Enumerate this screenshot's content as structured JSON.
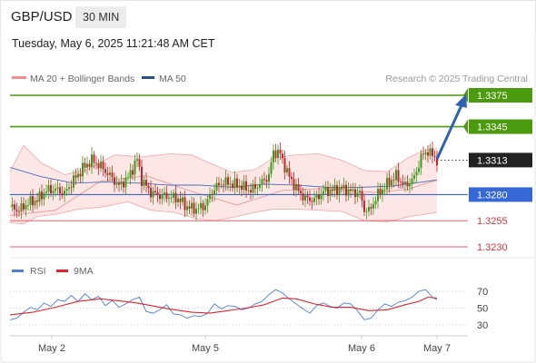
{
  "header": {
    "symbol": "GBP/USD",
    "timeframe": "30 MIN"
  },
  "timestamp": "Tuesday, May 6, 2025 11:21:48 AM CET",
  "legend": {
    "bollinger": "MA 20 + Bollinger Bands",
    "ma50": "MA 50",
    "rsi": "RSI",
    "rsi_ma": "9MA",
    "credit": "Research © 2025 Trading Central"
  },
  "colors": {
    "target": "#4c9a0e",
    "pivot": "#3567d6",
    "support": "#e8616a",
    "band_fill": "#fde6e6",
    "band_line": "#f2a7a7",
    "ma50_line": "#4a6fb5",
    "arrow": "#2f63ad",
    "candle_up": "#3c9a1b",
    "candle_down": "#c0262d",
    "rsi_line": "#4e7fd8",
    "rsi_ma_line": "#d92630"
  },
  "chart_data": [
    {
      "type": "candlestick",
      "symbol": "GBP/USD",
      "timeframe": "30 MIN",
      "ylim": [
        1.3216,
        1.3392
      ],
      "x_ticks": [
        "May 2",
        "May 5",
        "May 6",
        "May 7"
      ],
      "levels": [
        {
          "value": 1.3375,
          "label": "1.3375",
          "kind": "target"
        },
        {
          "value": 1.3345,
          "label": "1.3345",
          "kind": "target"
        },
        {
          "value": 1.3313,
          "label": "1.3313",
          "kind": "last"
        },
        {
          "value": 1.328,
          "label": "1.3280",
          "kind": "pivot"
        },
        {
          "value": 1.3255,
          "label": "1.3255",
          "kind": "support"
        },
        {
          "value": 1.323,
          "label": "1.3230",
          "kind": "support"
        }
      ],
      "arrow": {
        "from": 1.3314,
        "to": 1.3376,
        "direction": "up"
      },
      "close_path": [
        [
          0,
          1.3268
        ],
        [
          4,
          1.3265
        ],
        [
          8,
          1.3272
        ],
        [
          12,
          1.3275
        ],
        [
          16,
          1.3284
        ],
        [
          20,
          1.3285
        ],
        [
          24,
          1.3281
        ],
        [
          28,
          1.3294
        ],
        [
          32,
          1.3305
        ],
        [
          36,
          1.3313
        ],
        [
          40,
          1.3307
        ],
        [
          44,
          1.3298
        ],
        [
          48,
          1.3288
        ],
        [
          52,
          1.3296
        ],
        [
          56,
          1.3314
        ],
        [
          58,
          1.3294
        ],
        [
          62,
          1.3282
        ],
        [
          66,
          1.3279
        ],
        [
          70,
          1.3278
        ],
        [
          74,
          1.3276
        ],
        [
          78,
          1.3268
        ],
        [
          82,
          1.3266
        ],
        [
          86,
          1.327
        ],
        [
          90,
          1.3286
        ],
        [
          94,
          1.3292
        ],
        [
          98,
          1.329
        ],
        [
          102,
          1.3288
        ],
        [
          106,
          1.3284
        ],
        [
          110,
          1.329
        ],
        [
          114,
          1.3298
        ],
        [
          116,
          1.3321
        ],
        [
          119,
          1.3319
        ],
        [
          122,
          1.3301
        ],
        [
          126,
          1.3286
        ],
        [
          130,
          1.3276
        ],
        [
          134,
          1.3275
        ],
        [
          138,
          1.3283
        ],
        [
          142,
          1.3284
        ],
        [
          146,
          1.3286
        ],
        [
          150,
          1.3283
        ],
        [
          154,
          1.3281
        ],
        [
          156,
          1.3266
        ],
        [
          158,
          1.3264
        ],
        [
          162,
          1.328
        ],
        [
          166,
          1.329
        ],
        [
          170,
          1.3298
        ],
        [
          174,
          1.3288
        ],
        [
          178,
          1.3296
        ],
        [
          181,
          1.3316
        ],
        [
          184,
          1.3322
        ],
        [
          188,
          1.3313
        ]
      ],
      "ma20": [
        [
          0,
          1.326
        ],
        [
          20,
          1.3265
        ],
        [
          40,
          1.3293
        ],
        [
          60,
          1.3298
        ],
        [
          80,
          1.3283
        ],
        [
          100,
          1.327
        ],
        [
          120,
          1.3284
        ],
        [
          140,
          1.3286
        ],
        [
          160,
          1.3282
        ],
        [
          175,
          1.3285
        ],
        [
          188,
          1.3294
        ]
      ],
      "bollinger_upper": [
        [
          0,
          1.3302
        ],
        [
          6,
          1.3327
        ],
        [
          14,
          1.331
        ],
        [
          24,
          1.3299
        ],
        [
          34,
          1.3304
        ],
        [
          46,
          1.3318
        ],
        [
          58,
          1.3316
        ],
        [
          70,
          1.3319
        ],
        [
          80,
          1.3318
        ],
        [
          88,
          1.331
        ],
        [
          98,
          1.3301
        ],
        [
          108,
          1.3304
        ],
        [
          116,
          1.3315
        ],
        [
          126,
          1.3318
        ],
        [
          136,
          1.3319
        ],
        [
          146,
          1.3313
        ],
        [
          156,
          1.3303
        ],
        [
          166,
          1.3302
        ],
        [
          176,
          1.3316
        ],
        [
          182,
          1.3322
        ],
        [
          188,
          1.3324
        ]
      ],
      "bollinger_lower": [
        [
          0,
          1.3253
        ],
        [
          6,
          1.3252
        ],
        [
          12,
          1.3259
        ],
        [
          20,
          1.3261
        ],
        [
          30,
          1.3266
        ],
        [
          40,
          1.3268
        ],
        [
          52,
          1.3273
        ],
        [
          62,
          1.3265
        ],
        [
          72,
          1.3263
        ],
        [
          82,
          1.3257
        ],
        [
          90,
          1.3255
        ],
        [
          100,
          1.3259
        ],
        [
          110,
          1.3264
        ],
        [
          116,
          1.3266
        ],
        [
          126,
          1.3266
        ],
        [
          136,
          1.3265
        ],
        [
          146,
          1.3264
        ],
        [
          156,
          1.3255
        ],
        [
          166,
          1.3254
        ],
        [
          176,
          1.3259
        ],
        [
          188,
          1.3263
        ]
      ],
      "ma50": [
        [
          0,
          1.3306
        ],
        [
          14,
          1.3297
        ],
        [
          28,
          1.3291
        ],
        [
          42,
          1.3292
        ],
        [
          56,
          1.3291
        ],
        [
          70,
          1.3289
        ],
        [
          84,
          1.3289
        ],
        [
          98,
          1.3287
        ],
        [
          112,
          1.329
        ],
        [
          126,
          1.3289
        ],
        [
          140,
          1.3287
        ],
        [
          154,
          1.3287
        ],
        [
          168,
          1.3288
        ],
        [
          178,
          1.3291
        ],
        [
          188,
          1.3294
        ]
      ]
    },
    {
      "type": "line",
      "title": "RSI",
      "ylim": [
        20,
        80
      ],
      "y_ticks": [
        30,
        50,
        70
      ],
      "series": [
        {
          "name": "RSI",
          "values": [
            [
              0,
              36
            ],
            [
              3,
              38
            ],
            [
              6,
              45
            ],
            [
              9,
              51
            ],
            [
              12,
              48
            ],
            [
              15,
              56
            ],
            [
              18,
              52
            ],
            [
              21,
              60
            ],
            [
              24,
              58
            ],
            [
              27,
              65
            ],
            [
              30,
              58
            ],
            [
              33,
              67
            ],
            [
              36,
              60
            ],
            [
              39,
              64
            ],
            [
              42,
              53
            ],
            [
              45,
              59
            ],
            [
              48,
              51
            ],
            [
              51,
              55
            ],
            [
              54,
              60
            ],
            [
              57,
              63
            ],
            [
              60,
              46
            ],
            [
              63,
              44
            ],
            [
              66,
              48
            ],
            [
              69,
              54
            ],
            [
              72,
              43
            ],
            [
              75,
              42
            ],
            [
              78,
              38
            ],
            [
              81,
              41
            ],
            [
              84,
              40
            ],
            [
              87,
              44
            ],
            [
              90,
              55
            ],
            [
              93,
              49
            ],
            [
              96,
              53
            ],
            [
              99,
              52
            ],
            [
              102,
              48
            ],
            [
              105,
              50
            ],
            [
              108,
              55
            ],
            [
              111,
              58
            ],
            [
              114,
              66
            ],
            [
              117,
              72
            ],
            [
              120,
              68
            ],
            [
              123,
              61
            ],
            [
              126,
              55
            ],
            [
              129,
              49
            ],
            [
              132,
              44
            ],
            [
              135,
              53
            ],
            [
              138,
              56
            ],
            [
              141,
              52
            ],
            [
              144,
              50
            ],
            [
              147,
              56
            ],
            [
              150,
              55
            ],
            [
              153,
              47
            ],
            [
              156,
              36
            ],
            [
              159,
              38
            ],
            [
              162,
              48
            ],
            [
              165,
              55
            ],
            [
              168,
              52
            ],
            [
              171,
              57
            ],
            [
              174,
              59
            ],
            [
              177,
              63
            ],
            [
              180,
              70
            ],
            [
              183,
              72
            ],
            [
              186,
              63
            ],
            [
              188,
              60
            ]
          ]
        },
        {
          "name": "9MA",
          "values": [
            [
              0,
              42
            ],
            [
              10,
              45
            ],
            [
              20,
              51
            ],
            [
              30,
              58
            ],
            [
              40,
              61
            ],
            [
              50,
              58
            ],
            [
              56,
              56
            ],
            [
              62,
              53
            ],
            [
              70,
              49
            ],
            [
              80,
              45
            ],
            [
              88,
              44
            ],
            [
              96,
              47
            ],
            [
              104,
              50
            ],
            [
              112,
              54
            ],
            [
              120,
              62
            ],
            [
              126,
              61
            ],
            [
              134,
              55
            ],
            [
              142,
              51
            ],
            [
              150,
              51
            ],
            [
              158,
              47
            ],
            [
              166,
              48
            ],
            [
              174,
              54
            ],
            [
              180,
              58
            ],
            [
              184,
              63
            ],
            [
              188,
              62
            ]
          ]
        }
      ]
    }
  ]
}
